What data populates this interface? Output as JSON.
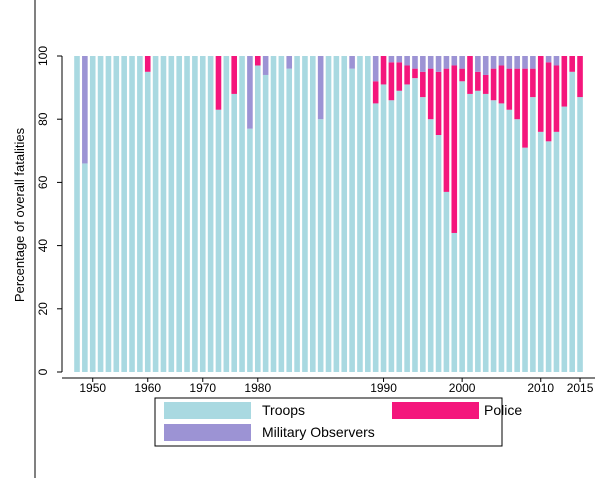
{
  "chart_data": {
    "type": "bar",
    "stacked": true,
    "y_label": "Percentage of overall fatalities",
    "categories": [
      null,
      null,
      "1950",
      null,
      null,
      null,
      null,
      null,
      null,
      "1960",
      null,
      null,
      null,
      null,
      null,
      null,
      "1970",
      null,
      null,
      null,
      null,
      null,
      null,
      "1980",
      null,
      null,
      null,
      null,
      null,
      null,
      null,
      null,
      null,
      null,
      null,
      null,
      null,
      null,
      null,
      "1990",
      null,
      null,
      null,
      null,
      null,
      null,
      null,
      null,
      null,
      "2000",
      null,
      null,
      null,
      null,
      null,
      null,
      null,
      null,
      null,
      "2010",
      null,
      null,
      null,
      null,
      "2015"
    ],
    "series": [
      {
        "name": "Troops",
        "color": "#a9d9e1",
        "values": [
          100,
          66,
          100,
          100,
          100,
          100,
          100,
          100,
          100,
          95,
          100,
          100,
          100,
          100,
          100,
          100,
          100,
          100,
          83,
          100,
          88,
          100,
          77,
          97,
          94,
          100,
          100,
          96,
          100,
          100,
          100,
          80,
          100,
          100,
          100,
          96,
          100,
          100,
          85,
          91,
          86,
          89,
          91,
          93,
          87,
          80,
          75,
          57,
          44,
          92,
          88,
          89,
          88,
          86,
          85,
          83,
          80,
          71,
          87,
          76,
          73,
          76,
          84,
          95,
          87
        ]
      },
      {
        "name": "Police",
        "color": "#f4167c",
        "values": [
          0,
          0,
          0,
          0,
          0,
          0,
          0,
          0,
          0,
          5,
          0,
          0,
          0,
          0,
          0,
          0,
          0,
          0,
          17,
          0,
          12,
          0,
          0,
          3,
          0,
          0,
          0,
          0,
          0,
          0,
          0,
          0,
          0,
          0,
          0,
          0,
          0,
          0,
          7,
          9,
          12,
          9,
          6,
          3,
          8,
          16,
          20,
          39,
          53,
          4,
          12,
          6,
          6,
          10,
          12,
          13,
          16,
          25,
          9,
          24,
          25,
          21,
          16,
          5,
          13
        ]
      },
      {
        "name": "Military Observers",
        "color": "#9c93d4",
        "values": [
          0,
          34,
          0,
          0,
          0,
          0,
          0,
          0,
          0,
          0,
          0,
          0,
          0,
          0,
          0,
          0,
          0,
          0,
          0,
          0,
          0,
          0,
          23,
          0,
          6,
          0,
          0,
          4,
          0,
          0,
          0,
          20,
          0,
          0,
          0,
          4,
          0,
          0,
          8,
          0,
          2,
          2,
          3,
          4,
          5,
          4,
          5,
          4,
          3,
          4,
          0,
          5,
          6,
          4,
          3,
          4,
          4,
          4,
          4,
          0,
          2,
          3,
          0,
          0,
          0
        ]
      }
    ],
    "ylim": [
      0,
      100
    ],
    "yticks": [
      0,
      20,
      40,
      60,
      80,
      100
    ]
  }
}
